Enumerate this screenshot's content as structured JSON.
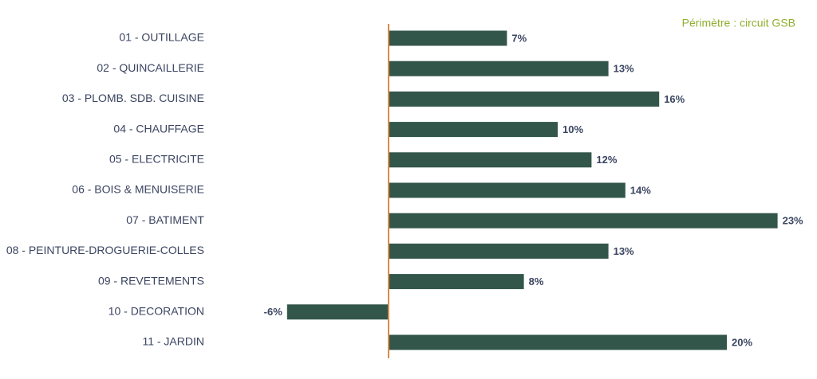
{
  "chart_data": {
    "type": "bar",
    "orientation": "horizontal",
    "annotation": "Périmètre : circuit GSB",
    "categories": [
      "01 - OUTILLAGE",
      "02 - QUINCAILLERIE",
      "03 - PLOMB. SDB. CUISINE",
      "04 - CHAUFFAGE",
      "05 - ELECTRICITE",
      "06 - BOIS & MENUISERIE",
      "07 - BATIMENT",
      "08 - PEINTURE-DROGUERIE-COLLES",
      "09 - REVETEMENTS",
      "10 - DECORATION",
      "11 - JARDIN"
    ],
    "values": [
      7,
      13,
      16,
      10,
      12,
      14,
      23,
      13,
      8,
      -6,
      20
    ],
    "value_labels": [
      "7%",
      "13%",
      "16%",
      "10%",
      "12%",
      "14%",
      "23%",
      "13%",
      "8%",
      "-6%",
      "20%"
    ],
    "color": "#33564a",
    "zero_line_color": "#d98c4a"
  }
}
